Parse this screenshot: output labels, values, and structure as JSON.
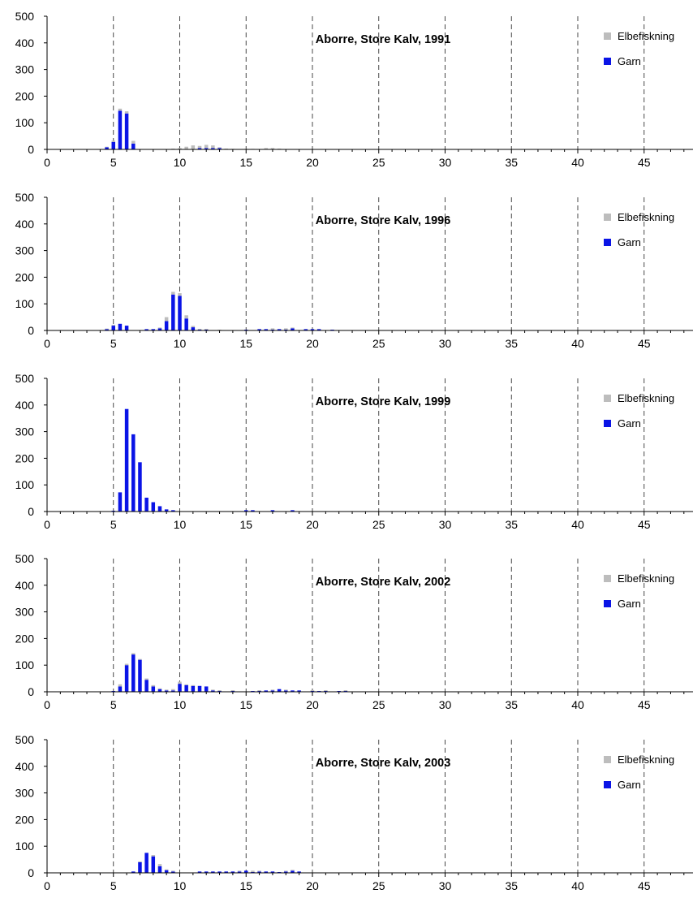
{
  "colors": {
    "elbefiskning": "#bdbdbd",
    "garn": "#0a14e6"
  },
  "legend": {
    "entries": [
      "Elbefiskning",
      "Garn"
    ]
  },
  "chart_data": [
    {
      "type": "bar",
      "stacked": true,
      "title": "Aborre, Store Kalv, 1991",
      "xlabel": "",
      "ylabel": "",
      "xlim": [
        0,
        48
      ],
      "ylim": [
        0,
        500
      ],
      "x_ticks": [
        0,
        5,
        10,
        15,
        20,
        25,
        30,
        35,
        40,
        45
      ],
      "y_ticks": [
        0,
        100,
        200,
        300,
        400,
        500
      ],
      "grid": "vertical dashed lines at 5, 10, 15, 20, 25, 30, 35, 40, 45",
      "legend_position": "top-right",
      "x": [
        4.5,
        5.0,
        5.5,
        6.0,
        6.5,
        9.5,
        10.0,
        10.5,
        11.0,
        11.5,
        12.0,
        12.5,
        13.0,
        13.5,
        14.0,
        15.0,
        15.5,
        16.5,
        17.0,
        17.5
      ],
      "series": [
        {
          "name": "Garn",
          "values": [
            8,
            28,
            145,
            135,
            22,
            0,
            0,
            0,
            0,
            5,
            5,
            5,
            5,
            0,
            0,
            0,
            0,
            0,
            0,
            0
          ]
        },
        {
          "name": "Elbefiskning",
          "values": [
            2,
            5,
            8,
            8,
            10,
            3,
            5,
            10,
            15,
            8,
            12,
            10,
            3,
            3,
            2,
            2,
            2,
            5,
            5,
            3
          ]
        }
      ]
    },
    {
      "type": "bar",
      "stacked": true,
      "title": "Aborre, Store Kalv, 1996",
      "xlabel": "",
      "ylabel": "",
      "xlim": [
        0,
        48
      ],
      "ylim": [
        0,
        500
      ],
      "x_ticks": [
        0,
        5,
        10,
        15,
        20,
        25,
        30,
        35,
        40,
        45
      ],
      "y_ticks": [
        0,
        100,
        200,
        300,
        400,
        500
      ],
      "grid": "vertical dashed lines at 5, 10, 15, 20, 25, 30, 35, 40, 45",
      "legend_position": "top-right",
      "x": [
        4.5,
        5.0,
        5.5,
        6.0,
        7.5,
        8.0,
        8.5,
        9.0,
        9.5,
        10.0,
        10.5,
        11.0,
        11.5,
        12.0,
        13.0,
        15.0,
        16.0,
        16.5,
        17.0,
        17.5,
        18.0,
        18.5,
        19.5,
        20.0,
        20.5,
        21.5
      ],
      "series": [
        {
          "name": "Garn",
          "values": [
            5,
            18,
            25,
            18,
            5,
            5,
            8,
            35,
            135,
            130,
            45,
            12,
            3,
            3,
            0,
            3,
            5,
            5,
            3,
            5,
            3,
            8,
            5,
            5,
            5,
            3
          ]
        },
        {
          "name": "Elbefiskning",
          "values": [
            2,
            3,
            0,
            0,
            0,
            0,
            3,
            15,
            10,
            10,
            12,
            5,
            3,
            3,
            3,
            0,
            0,
            0,
            5,
            0,
            5,
            3,
            0,
            0,
            0,
            0
          ]
        }
      ]
    },
    {
      "type": "bar",
      "stacked": true,
      "title": "Aborre, Store Kalv, 1999",
      "xlabel": "",
      "ylabel": "",
      "xlim": [
        0,
        48
      ],
      "ylim": [
        0,
        500
      ],
      "x_ticks": [
        0,
        5,
        10,
        15,
        20,
        25,
        30,
        35,
        40,
        45
      ],
      "y_ticks": [
        0,
        100,
        200,
        300,
        400,
        500
      ],
      "grid": "vertical dashed lines at 5, 10, 15, 20, 25, 30, 35, 40, 45",
      "legend_position": "top-right",
      "x": [
        5.0,
        5.5,
        6.0,
        6.5,
        7.0,
        7.5,
        8.0,
        8.5,
        9.0,
        9.5,
        15.0,
        15.5,
        17.0,
        18.5
      ],
      "series": [
        {
          "name": "Garn",
          "values": [
            3,
            72,
            385,
            290,
            185,
            52,
            35,
            20,
            8,
            5,
            5,
            5,
            5,
            5
          ]
        },
        {
          "name": "Elbefiskning",
          "values": [
            0,
            0,
            0,
            0,
            0,
            0,
            0,
            0,
            0,
            0,
            0,
            0,
            0,
            0
          ]
        }
      ]
    },
    {
      "type": "bar",
      "stacked": true,
      "title": "Aborre, Store Kalv, 2002",
      "xlabel": "",
      "ylabel": "",
      "xlim": [
        0,
        48
      ],
      "ylim": [
        0,
        500
      ],
      "x_ticks": [
        0,
        5,
        10,
        15,
        20,
        25,
        30,
        35,
        40,
        45
      ],
      "y_ticks": [
        0,
        100,
        200,
        300,
        400,
        500
      ],
      "grid": "vertical dashed lines at 5, 10, 15, 20, 25, 30, 35, 40, 45",
      "legend_position": "top-right",
      "x": [
        5.0,
        5.5,
        6.0,
        6.5,
        7.0,
        7.5,
        8.0,
        8.5,
        9.0,
        9.5,
        10.0,
        10.5,
        11.0,
        11.5,
        12.0,
        12.5,
        13.0,
        14.0,
        15.5,
        16.0,
        16.5,
        17.0,
        17.5,
        18.0,
        18.5,
        19.0,
        20.0,
        20.5,
        21.0,
        22.0,
        22.5
      ],
      "series": [
        {
          "name": "Garn",
          "values": [
            3,
            20,
            100,
            140,
            120,
            45,
            20,
            10,
            5,
            5,
            30,
            25,
            22,
            22,
            20,
            5,
            3,
            3,
            3,
            3,
            5,
            5,
            10,
            5,
            5,
            5,
            3,
            3,
            3,
            3,
            3
          ]
        },
        {
          "name": "Elbefiskning",
          "values": [
            0,
            8,
            5,
            5,
            3,
            5,
            5,
            3,
            3,
            5,
            8,
            3,
            3,
            0,
            0,
            3,
            3,
            3,
            0,
            3,
            0,
            3,
            0,
            3,
            0,
            0,
            3,
            0,
            3,
            0,
            3
          ]
        }
      ]
    },
    {
      "type": "bar",
      "stacked": true,
      "title": "Aborre, Store Kalv, 2003",
      "xlabel": "",
      "ylabel": "",
      "xlim": [
        0,
        48
      ],
      "ylim": [
        0,
        500
      ],
      "x_ticks": [
        0,
        5,
        10,
        15,
        20,
        25,
        30,
        35,
        40,
        45
      ],
      "y_ticks": [
        0,
        100,
        200,
        300,
        400,
        500
      ],
      "grid": "vertical dashed lines at 5, 10, 15, 20, 25, 30, 35, 40, 45",
      "legend_position": "top-right",
      "x": [
        6.5,
        7.0,
        7.5,
        8.0,
        8.5,
        9.0,
        9.5,
        11.5,
        12.0,
        12.5,
        13.0,
        13.5,
        14.0,
        14.5,
        15.0,
        15.5,
        16.0,
        16.5,
        17.0,
        17.5,
        18.0,
        18.5,
        19.0
      ],
      "series": [
        {
          "name": "Garn",
          "values": [
            5,
            40,
            75,
            62,
            25,
            10,
            5,
            5,
            5,
            5,
            5,
            5,
            5,
            5,
            8,
            3,
            5,
            5,
            5,
            3,
            5,
            8,
            5
          ]
        },
        {
          "name": "Elbefiskning",
          "values": [
            0,
            3,
            0,
            5,
            8,
            3,
            3,
            0,
            0,
            0,
            0,
            0,
            0,
            3,
            0,
            5,
            3,
            0,
            0,
            0,
            3,
            3,
            0
          ]
        }
      ]
    }
  ]
}
